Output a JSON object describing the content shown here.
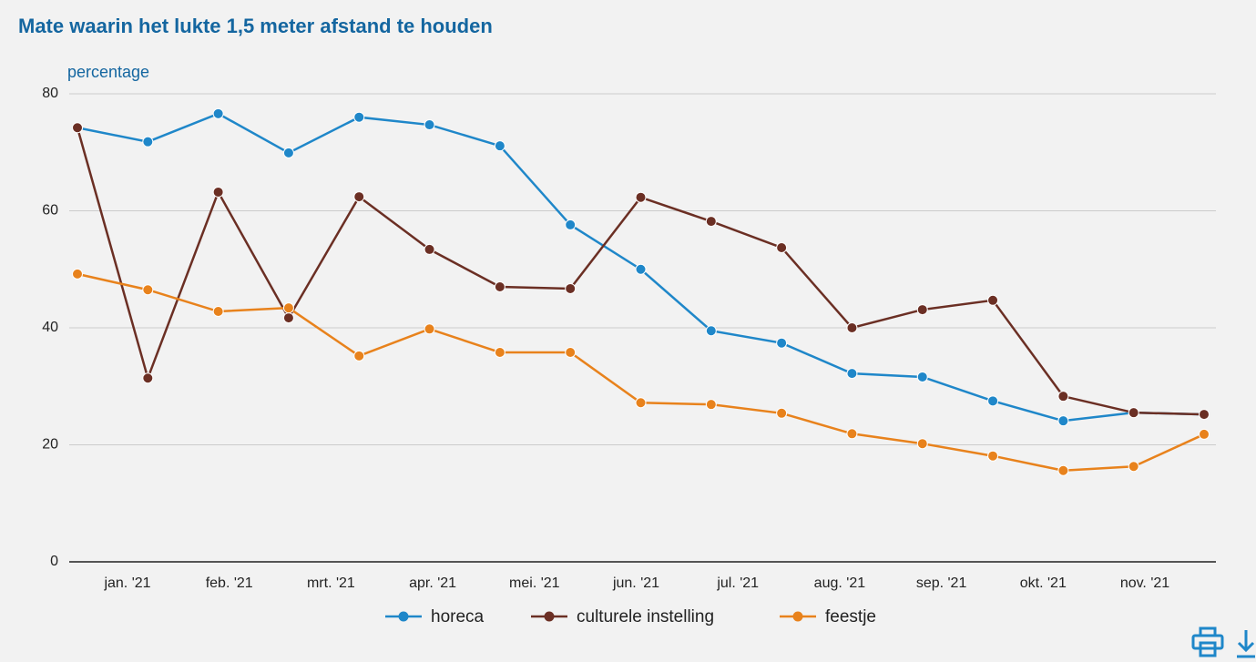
{
  "chart_data": {
    "type": "line",
    "title": "Mate waarin het lukte 1,5 meter afstand te houden",
    "y_label": "percentage",
    "month_labels": [
      "jan. '21",
      "feb. '21",
      "mrt. '21",
      "apr. '21",
      "mei. '21",
      "jun. '21",
      "jul. '21",
      "aug. '21",
      "sep. '21",
      "okt. '21",
      "nov. '21"
    ],
    "ylim": [
      0,
      80
    ],
    "yticks": [
      0,
      20,
      40,
      60,
      80
    ],
    "grid": true,
    "series": [
      {
        "name": "horeca",
        "color": "#1f87c9",
        "values": [
          74.2,
          71.8,
          76.6,
          69.9,
          76.0,
          74.7,
          71.1,
          57.6,
          50.0,
          39.5,
          37.4,
          32.2,
          31.6,
          27.5,
          24.1,
          25.5,
          25.2
        ]
      },
      {
        "name": "culturele instelling",
        "color": "#6b2f24",
        "values": [
          74.2,
          31.4,
          63.2,
          41.7,
          62.4,
          53.4,
          47.0,
          46.7,
          62.3,
          58.2,
          53.7,
          40.0,
          43.1,
          44.7,
          28.3,
          25.5,
          25.2
        ]
      },
      {
        "name": "feestje",
        "color": "#e8821c",
        "values": [
          49.2,
          46.5,
          42.8,
          43.4,
          35.2,
          39.8,
          35.8,
          35.8,
          27.2,
          26.9,
          25.4,
          21.9,
          20.2,
          18.1,
          15.6,
          16.3,
          21.8
        ]
      }
    ]
  }
}
